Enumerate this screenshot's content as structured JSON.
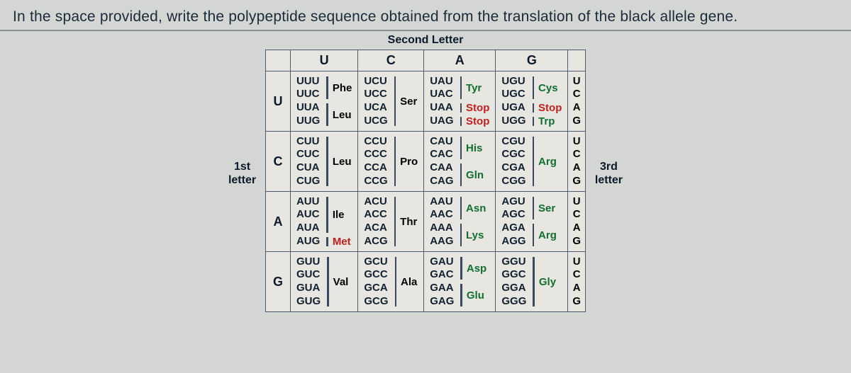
{
  "question": "In the space provided, write the polypeptide sequence obtained from the translation of the black allele gene.",
  "labels": {
    "top": "Second Letter",
    "left_line1": "1st",
    "left_line2": "letter",
    "right_line1": "3rd",
    "right_line2": "letter"
  },
  "col_heads": [
    "U",
    "C",
    "A",
    "G"
  ],
  "row_heads": [
    "U",
    "C",
    "A",
    "G"
  ],
  "third_letters": [
    "U",
    "C",
    "A",
    "G"
  ],
  "table": {
    "U": {
      "U": {
        "codons": [
          "UUU",
          "UUC",
          "UUA",
          "UUG"
        ],
        "aa_groups": [
          {
            "label": "Phe",
            "span": 2,
            "cls": ""
          },
          {
            "label": "Leu",
            "span": 2,
            "cls": ""
          }
        ]
      },
      "C": {
        "codons": [
          "UCU",
          "UCC",
          "UCA",
          "UCG"
        ],
        "aa_groups": [
          {
            "label": "Ser",
            "span": 4,
            "cls": ""
          }
        ]
      },
      "A": {
        "codons": [
          "UAU",
          "UAC",
          "UAA",
          "UAG"
        ],
        "aa_groups": [
          {
            "label": "Tyr",
            "span": 2,
            "cls": "green"
          },
          {
            "label": "Stop",
            "span": 1,
            "cls": "stop"
          },
          {
            "label": "Stop",
            "span": 1,
            "cls": "stop"
          }
        ]
      },
      "G": {
        "codons": [
          "UGU",
          "UGC",
          "UGA",
          "UGG"
        ],
        "aa_groups": [
          {
            "label": "Cys",
            "span": 2,
            "cls": "green"
          },
          {
            "label": "Stop",
            "span": 1,
            "cls": "stop"
          },
          {
            "label": "Trp",
            "span": 1,
            "cls": "green"
          }
        ]
      }
    },
    "C": {
      "U": {
        "codons": [
          "CUU",
          "CUC",
          "CUA",
          "CUG"
        ],
        "aa_groups": [
          {
            "label": "Leu",
            "span": 4,
            "cls": ""
          }
        ]
      },
      "C": {
        "codons": [
          "CCU",
          "CCC",
          "CCA",
          "CCG"
        ],
        "aa_groups": [
          {
            "label": "Pro",
            "span": 4,
            "cls": ""
          }
        ]
      },
      "A": {
        "codons": [
          "CAU",
          "CAC",
          "CAA",
          "CAG"
        ],
        "aa_groups": [
          {
            "label": "His",
            "span": 2,
            "cls": "green"
          },
          {
            "label": "Gln",
            "span": 2,
            "cls": "green"
          }
        ]
      },
      "G": {
        "codons": [
          "CGU",
          "CGC",
          "CGA",
          "CGG"
        ],
        "aa_groups": [
          {
            "label": "Arg",
            "span": 4,
            "cls": "green"
          }
        ]
      }
    },
    "A": {
      "U": {
        "codons": [
          "AUU",
          "AUC",
          "AUA",
          "AUG"
        ],
        "aa_groups": [
          {
            "label": "Ile",
            "span": 3,
            "cls": ""
          },
          {
            "label": "Met",
            "span": 1,
            "cls": "met"
          }
        ]
      },
      "C": {
        "codons": [
          "ACU",
          "ACC",
          "ACA",
          "ACG"
        ],
        "aa_groups": [
          {
            "label": "Thr",
            "span": 4,
            "cls": ""
          }
        ]
      },
      "A": {
        "codons": [
          "AAU",
          "AAC",
          "AAA",
          "AAG"
        ],
        "aa_groups": [
          {
            "label": "Asn",
            "span": 2,
            "cls": "green"
          },
          {
            "label": "Lys",
            "span": 2,
            "cls": "green"
          }
        ]
      },
      "G": {
        "codons": [
          "AGU",
          "AGC",
          "AGA",
          "AGG"
        ],
        "aa_groups": [
          {
            "label": "Ser",
            "span": 2,
            "cls": "green"
          },
          {
            "label": "Arg",
            "span": 2,
            "cls": "green"
          }
        ]
      }
    },
    "G": {
      "U": {
        "codons": [
          "GUU",
          "GUC",
          "GUA",
          "GUG"
        ],
        "aa_groups": [
          {
            "label": "Val",
            "span": 4,
            "cls": ""
          }
        ]
      },
      "C": {
        "codons": [
          "GCU",
          "GCC",
          "GCA",
          "GCG"
        ],
        "aa_groups": [
          {
            "label": "Ala",
            "span": 4,
            "cls": ""
          }
        ]
      },
      "A": {
        "codons": [
          "GAU",
          "GAC",
          "GAA",
          "GAG"
        ],
        "aa_groups": [
          {
            "label": "Asp",
            "span": 2,
            "cls": "green"
          },
          {
            "label": "Glu",
            "span": 2,
            "cls": "green"
          }
        ]
      },
      "G": {
        "codons": [
          "GGU",
          "GGC",
          "GGA",
          "GGG"
        ],
        "aa_groups": [
          {
            "label": "Gly",
            "span": 4,
            "cls": "green"
          }
        ]
      }
    }
  }
}
